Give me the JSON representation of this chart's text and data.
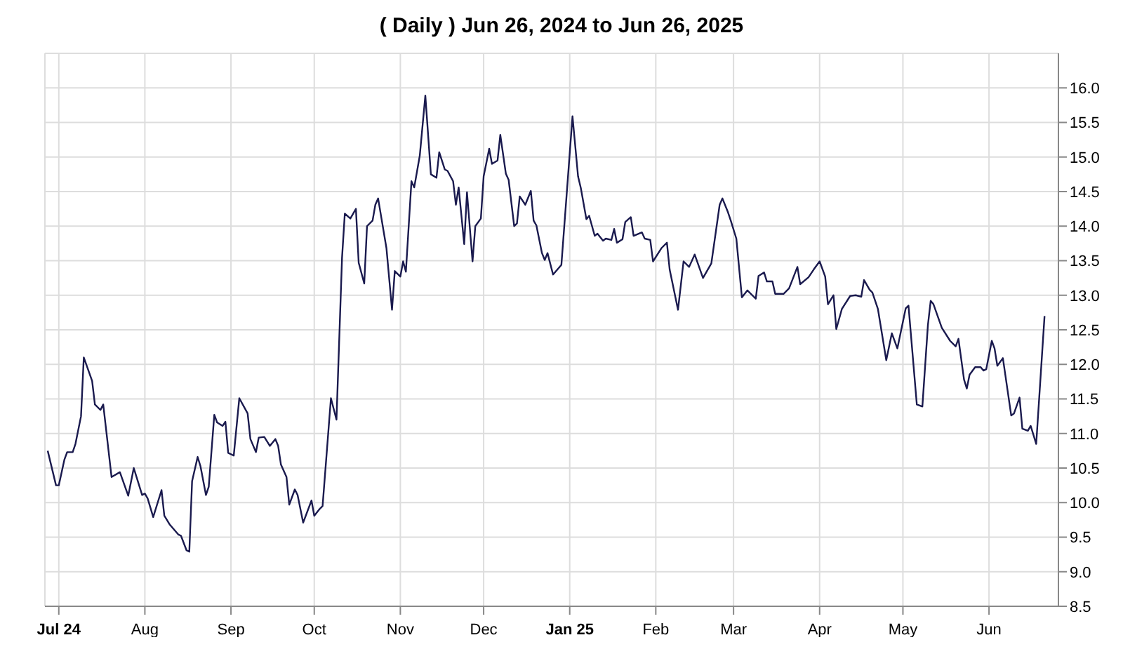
{
  "chart_data": {
    "type": "line",
    "title": "( Daily ) Jun 26, 2024 to Jun 26, 2025",
    "xlim": [
      "2024-06-26",
      "2025-06-26"
    ],
    "xticks": [
      {
        "value": "2024-07-01",
        "label": "Jul 24"
      },
      {
        "value": "2024-08-01",
        "label": "Aug"
      },
      {
        "value": "2024-09-01",
        "label": "Sep"
      },
      {
        "value": "2024-10-01",
        "label": "Oct"
      },
      {
        "value": "2024-11-01",
        "label": "Nov"
      },
      {
        "value": "2024-12-01",
        "label": "Dec"
      },
      {
        "value": "2025-01-01",
        "label": "Jan 25"
      },
      {
        "value": "2025-02-01",
        "label": "Feb"
      },
      {
        "value": "2025-03-01",
        "label": "Mar"
      },
      {
        "value": "2025-04-01",
        "label": "Apr"
      },
      {
        "value": "2025-05-01",
        "label": "May"
      },
      {
        "value": "2025-06-01",
        "label": "Jun"
      }
    ],
    "ylim": [
      8.5,
      16.5
    ],
    "yticks": [
      8.5,
      {
        "value": 9,
        "label": "9.0"
      },
      9.5,
      {
        "value": 10,
        "label": "10.0"
      },
      10.5,
      {
        "value": 11,
        "label": "11.0"
      },
      11.5,
      {
        "value": 12,
        "label": "12.0"
      },
      12.5,
      {
        "value": 13,
        "label": "13.0"
      },
      13.5,
      {
        "value": 14,
        "label": "14.0"
      },
      14.5,
      {
        "value": 15,
        "label": "15.0"
      },
      15.5,
      {
        "value": 16,
        "label": "16.0"
      }
    ],
    "grid": true,
    "marker": "none",
    "line_style": "solid",
    "legend": false,
    "x": [
      "2024-06-27",
      "2024-06-30",
      "2024-07-01",
      "2024-07-03",
      "2024-07-04",
      "2024-07-06",
      "2024-07-07",
      "2024-07-09",
      "2024-07-10",
      "2024-07-13",
      "2024-07-14",
      "2024-07-16",
      "2024-07-17",
      "2024-07-20",
      "2024-07-23",
      "2024-07-26",
      "2024-07-28",
      "2024-07-29",
      "2024-07-31",
      "2024-08-01",
      "2024-08-02",
      "2024-08-04",
      "2024-08-07",
      "2024-08-08",
      "2024-08-10",
      "2024-08-13",
      "2024-08-14",
      "2024-08-16",
      "2024-08-17",
      "2024-08-18",
      "2024-08-20",
      "2024-08-21",
      "2024-08-23",
      "2024-08-24",
      "2024-08-26",
      "2024-08-27",
      "2024-08-29",
      "2024-08-30",
      "2024-08-31",
      "2024-09-02",
      "2024-09-04",
      "2024-09-07",
      "2024-09-08",
      "2024-09-10",
      "2024-09-11",
      "2024-09-13",
      "2024-09-15",
      "2024-09-17",
      "2024-09-18",
      "2024-09-19",
      "2024-09-21",
      "2024-09-22",
      "2024-09-24",
      "2024-09-25",
      "2024-09-27",
      "2024-09-30",
      "2024-10-01",
      "2024-10-03",
      "2024-10-04",
      "2024-10-06",
      "2024-10-07",
      "2024-10-09",
      "2024-10-11",
      "2024-10-12",
      "2024-10-14",
      "2024-10-16",
      "2024-10-17",
      "2024-10-19",
      "2024-10-20",
      "2024-10-22",
      "2024-10-23",
      "2024-10-24",
      "2024-10-27",
      "2024-10-29",
      "2024-10-30",
      "2024-11-01",
      "2024-11-02",
      "2024-11-03",
      "2024-11-05",
      "2024-11-06",
      "2024-11-08",
      "2024-11-10",
      "2024-11-12",
      "2024-11-14",
      "2024-11-15",
      "2024-11-17",
      "2024-11-18",
      "2024-11-20",
      "2024-11-21",
      "2024-11-22",
      "2024-11-24",
      "2024-11-25",
      "2024-11-27",
      "2024-11-28",
      "2024-11-30",
      "2024-12-01",
      "2024-12-03",
      "2024-12-04",
      "2024-12-06",
      "2024-12-07",
      "2024-12-09",
      "2024-12-10",
      "2024-12-12",
      "2024-12-13",
      "2024-12-14",
      "2024-12-16",
      "2024-12-18",
      "2024-12-19",
      "2024-12-20",
      "2024-12-22",
      "2024-12-23",
      "2024-12-24",
      "2024-12-26",
      "2024-12-29",
      "2025-01-02",
      "2025-01-04",
      "2025-01-05",
      "2025-01-07",
      "2025-01-08",
      "2025-01-10",
      "2025-01-11",
      "2025-01-13",
      "2025-01-14",
      "2025-01-16",
      "2025-01-17",
      "2025-01-18",
      "2025-01-20",
      "2025-01-21",
      "2025-01-23",
      "2025-01-24",
      "2025-01-27",
      "2025-01-28",
      "2025-01-30",
      "2025-01-31",
      "2025-02-03",
      "2025-02-05",
      "2025-02-06",
      "2025-02-09",
      "2025-02-11",
      "2025-02-13",
      "2025-02-15",
      "2025-02-18",
      "2025-02-21",
      "2025-02-24",
      "2025-02-25",
      "2025-02-27",
      "2025-02-28",
      "2025-03-02",
      "2025-03-04",
      "2025-03-06",
      "2025-03-08",
      "2025-03-09",
      "2025-03-10",
      "2025-03-12",
      "2025-03-13",
      "2025-03-15",
      "2025-03-16",
      "2025-03-19",
      "2025-03-21",
      "2025-03-24",
      "2025-03-25",
      "2025-03-28",
      "2025-03-30",
      "2025-04-01",
      "2025-04-03",
      "2025-04-04",
      "2025-04-06",
      "2025-04-07",
      "2025-04-09",
      "2025-04-12",
      "2025-04-14",
      "2025-04-16",
      "2025-04-17",
      "2025-04-19",
      "2025-04-20",
      "2025-04-22",
      "2025-04-25",
      "2025-04-27",
      "2025-04-29",
      "2025-05-02",
      "2025-05-03",
      "2025-05-06",
      "2025-05-08",
      "2025-05-10",
      "2025-05-11",
      "2025-05-12",
      "2025-05-15",
      "2025-05-18",
      "2025-05-20",
      "2025-05-21",
      "2025-05-23",
      "2025-05-24",
      "2025-05-25",
      "2025-05-27",
      "2025-05-29",
      "2025-05-30",
      "2025-05-31",
      "2025-06-02",
      "2025-06-03",
      "2025-06-04",
      "2025-06-06",
      "2025-06-09",
      "2025-06-10",
      "2025-06-12",
      "2025-06-13",
      "2025-06-15",
      "2025-06-16",
      "2025-06-18",
      "2025-06-21"
    ],
    "series": [
      {
        "color": "#1a1a4e",
        "values": [
          10.75,
          10.25,
          10.25,
          10.62,
          10.73,
          10.73,
          10.85,
          11.25,
          12.1,
          11.76,
          11.42,
          11.34,
          11.42,
          10.37,
          10.44,
          10.1,
          10.5,
          10.37,
          10.11,
          10.13,
          10.06,
          9.79,
          10.18,
          9.81,
          9.68,
          9.54,
          9.52,
          9.31,
          9.29,
          10.31,
          10.66,
          10.53,
          10.11,
          10.23,
          11.27,
          11.16,
          11.11,
          11.17,
          10.72,
          10.68,
          11.51,
          11.29,
          10.92,
          10.73,
          10.94,
          10.95,
          10.82,
          10.92,
          10.82,
          10.55,
          10.37,
          9.97,
          10.19,
          10.11,
          9.71,
          10.03,
          9.81,
          9.91,
          9.95,
          10.99,
          11.51,
          11.2,
          13.54,
          14.18,
          14.11,
          14.25,
          13.47,
          13.17,
          14.0,
          14.08,
          14.31,
          14.4,
          13.68,
          12.79,
          13.35,
          13.27,
          13.49,
          13.34,
          14.65,
          14.56,
          15.02,
          15.89,
          14.75,
          14.7,
          15.07,
          14.82,
          14.8,
          14.65,
          14.31,
          14.56,
          13.74,
          14.49,
          13.49,
          14.0,
          14.11,
          14.72,
          15.12,
          14.9,
          14.95,
          15.32,
          14.76,
          14.67,
          14.0,
          14.04,
          14.43,
          14.31,
          14.51,
          14.08,
          14.01,
          13.61,
          13.51,
          13.61,
          13.3,
          13.44,
          15.59,
          14.72,
          14.55,
          14.1,
          14.15,
          13.86,
          13.89,
          13.79,
          13.82,
          13.8,
          13.96,
          13.76,
          13.81,
          14.06,
          14.13,
          13.86,
          13.91,
          13.82,
          13.8,
          13.49,
          13.68,
          13.76,
          13.37,
          12.79,
          13.49,
          13.41,
          13.59,
          13.25,
          13.46,
          14.31,
          14.4,
          14.2,
          14.08,
          13.82,
          12.97,
          13.07,
          12.99,
          12.95,
          13.28,
          13.33,
          13.2,
          13.2,
          13.02,
          13.02,
          13.1,
          13.41,
          13.16,
          13.26,
          13.38,
          13.49,
          13.27,
          12.87,
          13.0,
          12.51,
          12.8,
          12.99,
          13.0,
          12.98,
          13.22,
          13.08,
          13.04,
          12.8,
          12.06,
          12.45,
          12.23,
          12.81,
          12.85,
          11.42,
          11.39,
          12.57,
          12.92,
          12.87,
          12.53,
          12.34,
          12.26,
          12.37,
          11.78,
          11.65,
          11.85,
          11.96,
          11.96,
          11.91,
          11.93,
          12.34,
          12.23,
          11.98,
          12.09,
          11.26,
          11.29,
          11.52,
          11.07,
          11.04,
          11.11,
          10.85,
          12.7
        ]
      }
    ]
  }
}
